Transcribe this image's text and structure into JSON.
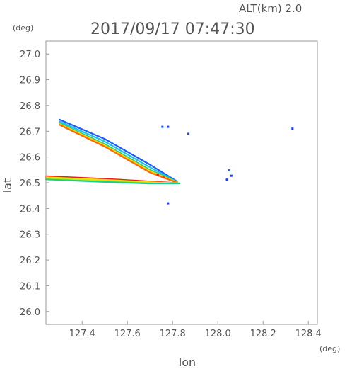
{
  "header": {
    "altitude": "ALT(km) 2.0",
    "timestamp": "2017/09/17 07:47:30"
  },
  "chart_data": {
    "type": "scatter",
    "xlabel": "lon",
    "ylabel": "lat",
    "xunit": "(deg)",
    "yunit": "(deg)",
    "xlim": [
      127.24,
      128.44
    ],
    "ylim": [
      25.95,
      27.05
    ],
    "xticks": [
      {
        "value": 127.4,
        "label": "127.4"
      },
      {
        "value": 127.6,
        "label": "127.6"
      },
      {
        "value": 127.8,
        "label": "127.8"
      },
      {
        "value": 128.0,
        "label": "128.0"
      },
      {
        "value": 128.2,
        "label": "128.2"
      },
      {
        "value": 128.4,
        "label": "128.4"
      }
    ],
    "yticks": [
      {
        "value": 27.0,
        "label": "27.0"
      },
      {
        "value": 26.9,
        "label": "26.9"
      },
      {
        "value": 26.8,
        "label": "26.8"
      },
      {
        "value": 26.7,
        "label": "26.7"
      },
      {
        "value": 26.6,
        "label": "26.6"
      },
      {
        "value": 26.5,
        "label": "26.5"
      },
      {
        "value": 26.4,
        "label": "26.4"
      },
      {
        "value": 26.3,
        "label": "26.3"
      },
      {
        "value": 26.2,
        "label": "26.2"
      },
      {
        "value": 26.1,
        "label": "26.1"
      },
      {
        "value": 26.0,
        "label": "26.0"
      }
    ],
    "grid": false,
    "streaks": [
      {
        "color": "#1e5aff",
        "points": [
          [
            127.3,
            26.745
          ],
          [
            127.5,
            26.67
          ],
          [
            127.7,
            26.57
          ],
          [
            127.82,
            26.505
          ]
        ]
      },
      {
        "color": "#1ebdf0",
        "points": [
          [
            127.3,
            26.738
          ],
          [
            127.5,
            26.66
          ],
          [
            127.7,
            26.56
          ],
          [
            127.82,
            26.503
          ]
        ]
      },
      {
        "color": "#1ecf8a",
        "points": [
          [
            127.3,
            26.732
          ],
          [
            127.5,
            26.65
          ],
          [
            127.7,
            26.55
          ],
          [
            127.82,
            26.502
          ]
        ]
      },
      {
        "color": "#ffdc00",
        "points": [
          [
            127.3,
            26.728
          ],
          [
            127.5,
            26.645
          ],
          [
            127.7,
            26.545
          ],
          [
            127.82,
            26.501
          ]
        ]
      },
      {
        "color": "#ff6a00",
        "points": [
          [
            127.3,
            26.725
          ],
          [
            127.5,
            26.64
          ],
          [
            127.7,
            26.54
          ],
          [
            127.82,
            26.5
          ]
        ]
      },
      {
        "color": "#ee1c1c",
        "points": [
          [
            127.24,
            26.525
          ],
          [
            127.5,
            26.515
          ],
          [
            127.7,
            26.505
          ],
          [
            127.83,
            26.498
          ]
        ]
      },
      {
        "color": "#ffdc00",
        "points": [
          [
            127.24,
            26.521
          ],
          [
            127.5,
            26.511
          ],
          [
            127.7,
            26.502
          ],
          [
            127.83,
            26.498
          ]
        ]
      },
      {
        "color": "#b4ee1e",
        "points": [
          [
            127.24,
            26.517
          ],
          [
            127.5,
            26.507
          ],
          [
            127.7,
            26.499
          ],
          [
            127.83,
            26.498
          ]
        ]
      },
      {
        "color": "#1ecf8a",
        "points": [
          [
            127.24,
            26.513
          ],
          [
            127.5,
            26.503
          ],
          [
            127.7,
            26.497
          ],
          [
            127.83,
            26.497
          ]
        ]
      }
    ],
    "spots": [
      {
        "lon": 127.755,
        "lat": 26.717,
        "color": "#1e5aff"
      },
      {
        "lon": 127.78,
        "lat": 26.717,
        "color": "#1e3cff"
      },
      {
        "lon": 127.87,
        "lat": 26.69,
        "color": "#1e3cff"
      },
      {
        "lon": 128.05,
        "lat": 26.548,
        "color": "#1e5aff"
      },
      {
        "lon": 128.06,
        "lat": 26.527,
        "color": "#1e3cff"
      },
      {
        "lon": 128.04,
        "lat": 26.512,
        "color": "#1e3cff"
      },
      {
        "lon": 127.78,
        "lat": 26.42,
        "color": "#1e3cff"
      },
      {
        "lon": 128.33,
        "lat": 26.71,
        "color": "#1e3cff"
      },
      {
        "lon": 127.735,
        "lat": 26.53,
        "color": "#ee1c1c"
      },
      {
        "lon": 127.76,
        "lat": 26.52,
        "color": "#ee1c1c"
      }
    ]
  }
}
